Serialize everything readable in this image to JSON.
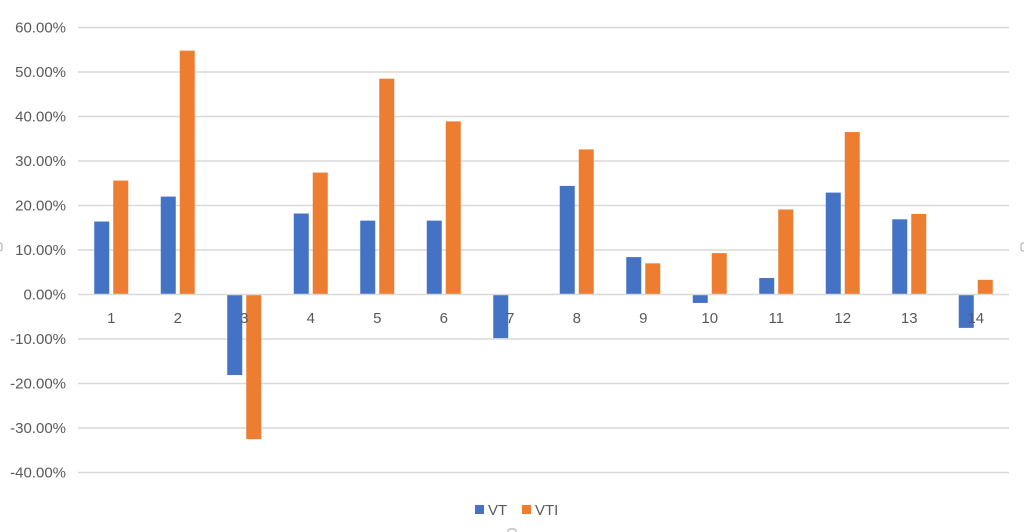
{
  "chart_data": {
    "type": "bar",
    "title": "",
    "xlabel": "",
    "ylabel": "",
    "categories": [
      "1",
      "2",
      "3",
      "4",
      "5",
      "6",
      "7",
      "8",
      "9",
      "10",
      "11",
      "12",
      "13",
      "14"
    ],
    "series": [
      {
        "name": "VT",
        "color": "#4472c4",
        "values": [
          16.4,
          22.0,
          -18.1,
          18.2,
          16.6,
          16.6,
          -9.8,
          24.4,
          8.4,
          -1.9,
          3.7,
          22.9,
          16.9,
          -7.5
        ]
      },
      {
        "name": "VTI",
        "color": "#ed7d31",
        "values": [
          25.6,
          54.8,
          -32.5,
          27.4,
          48.5,
          38.9,
          0.0,
          32.6,
          7.0,
          9.3,
          19.1,
          36.5,
          18.1,
          3.3
        ]
      }
    ],
    "ylim": [
      -40,
      60
    ],
    "yticks": [
      60,
      50,
      40,
      30,
      20,
      10,
      0,
      -10,
      -20,
      -30,
      -40
    ],
    "ytick_labels": [
      "60.00%",
      "50.00%",
      "40.00%",
      "30.00%",
      "20.00%",
      "10.00%",
      "0.00%",
      "-10.00%",
      "-20.00%",
      "-30.00%",
      "-40.00%"
    ],
    "value_format": "percent",
    "grid": true,
    "legend_position": "bottom"
  },
  "legend": {
    "items": [
      {
        "label": "VT",
        "color": "#4472c4"
      },
      {
        "label": "VTI",
        "color": "#ed7d31"
      }
    ]
  }
}
